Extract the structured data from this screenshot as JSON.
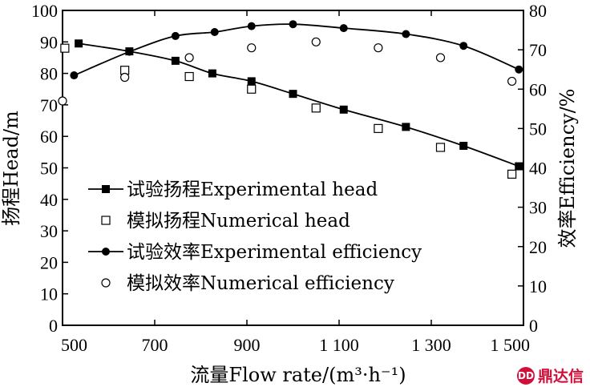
{
  "chart_data": {
    "type": "line",
    "x_label": "流量Flow rate/(m³·h⁻¹)",
    "y_label_left": "扬程Head/m",
    "y_label_right": "效率Efficiency/%",
    "xlim": [
      500,
      1500
    ],
    "ylim_left": [
      0,
      100
    ],
    "ylim_right": [
      0,
      80
    ],
    "x_ticks": [
      500,
      700,
      900,
      1100,
      1300,
      1500
    ],
    "x_tick_labels": [
      "500",
      "700",
      "900",
      "1 100",
      "1 300",
      "1 500"
    ],
    "y_ticks_left": [
      0,
      10,
      20,
      30,
      40,
      50,
      60,
      70,
      80,
      90,
      100
    ],
    "y_ticks_right": [
      0,
      10,
      20,
      30,
      40,
      50,
      60,
      70,
      80
    ],
    "legend_position": "lower-left",
    "series": [
      {
        "name": "试验扬程Experimental head",
        "axis": "left",
        "marker": "filled-square",
        "line": true,
        "x": [
          535,
          645,
          745,
          825,
          910,
          1000,
          1110,
          1245,
          1370,
          1490
        ],
        "y": [
          89.5,
          87,
          84,
          80,
          77.5,
          73.5,
          68.5,
          63,
          57,
          50.5
        ]
      },
      {
        "name": "模拟扬程Numerical head",
        "axis": "left",
        "marker": "open-square",
        "line": false,
        "x": [
          505,
          635,
          775,
          910,
          1050,
          1185,
          1320,
          1475
        ],
        "y": [
          88,
          81,
          79,
          75,
          69,
          62.5,
          56.5,
          48
        ]
      },
      {
        "name": "试验效率Experimental efficiency",
        "axis": "right",
        "marker": "filled-circle",
        "line": true,
        "x": [
          525,
          645,
          745,
          830,
          910,
          1000,
          1110,
          1245,
          1370,
          1490
        ],
        "y": [
          63.5,
          69.5,
          73.5,
          74.5,
          76,
          76.5,
          75.5,
          74,
          71,
          65
        ]
      },
      {
        "name": "模拟效率Numerical efficiency",
        "axis": "right",
        "marker": "open-circle",
        "line": false,
        "x": [
          500,
          635,
          775,
          910,
          1050,
          1185,
          1320,
          1475
        ],
        "y": [
          57,
          63,
          68,
          70.5,
          72,
          70.5,
          68,
          62
        ]
      }
    ]
  },
  "watermark": {
    "text": "鼎达信",
    "logo_text": "DD"
  }
}
